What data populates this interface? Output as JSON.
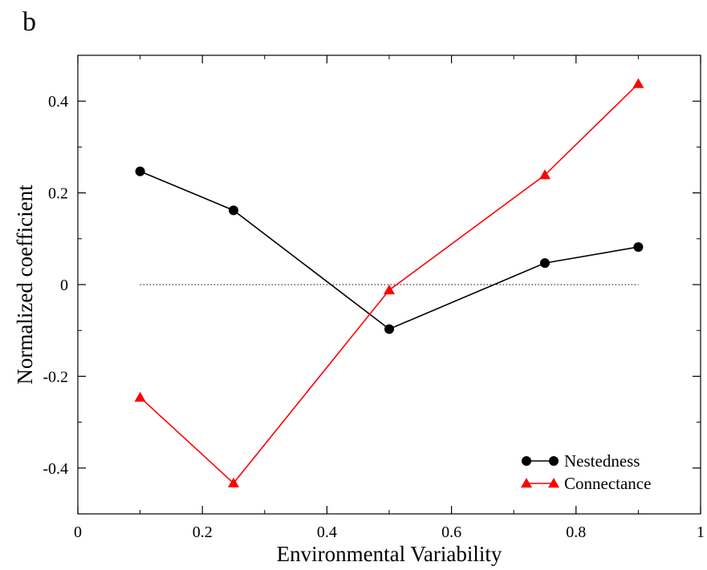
{
  "panel_label": "b",
  "chart_data": {
    "type": "line",
    "xlabel": "Environmental Variability",
    "ylabel": "Normalized coefficient",
    "xlim": [
      0,
      1
    ],
    "ylim": [
      -0.5,
      0.5
    ],
    "x_ticks": [
      0,
      0.2,
      0.4,
      0.6,
      0.8,
      1
    ],
    "x_tick_labels": [
      "0",
      "0.2",
      "0.4",
      "0.6",
      "0.8",
      "1"
    ],
    "y_ticks": [
      -0.4,
      -0.2,
      0,
      0.2,
      0.4
    ],
    "y_tick_labels": [
      "-0.4",
      "-0.2",
      "0",
      "0.2",
      "0.4"
    ],
    "reference_line": {
      "y": 0,
      "x_range": [
        0.1,
        0.9
      ],
      "style": "dotted"
    },
    "grid": false,
    "legend_position": "bottom-right",
    "series": [
      {
        "name": "Nestedness",
        "color": "#000000",
        "marker": "circle",
        "x": [
          0.1,
          0.25,
          0.5,
          0.75,
          0.9
        ],
        "y": [
          0.247,
          0.162,
          -0.097,
          0.047,
          0.082
        ]
      },
      {
        "name": "Connectance",
        "color": "#ff0000",
        "marker": "triangle",
        "x": [
          0.1,
          0.25,
          0.5,
          0.75,
          0.9
        ],
        "y": [
          -0.246,
          -0.433,
          -0.012,
          0.239,
          0.438
        ]
      }
    ]
  }
}
